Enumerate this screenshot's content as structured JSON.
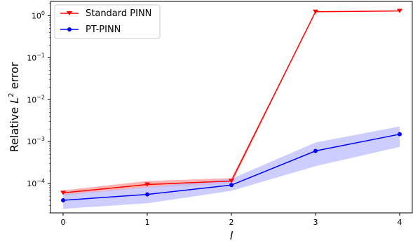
{
  "chart_data": {
    "type": "line",
    "x": [
      0,
      1,
      2,
      3,
      4
    ],
    "xticks": [
      "0",
      "1",
      "2",
      "3",
      "4"
    ],
    "xlabel": "l",
    "ylabel": "Relative L² error",
    "ylabel_main": "Relative ",
    "ylabel_italic": "L",
    "ylabel_sup": "2",
    "ylabel_rest": " error",
    "yscale": "log",
    "ylim": [
      2e-05,
      2.2
    ],
    "yticks": [
      {
        "value": 0.0001,
        "base": "10",
        "exp": "−4"
      },
      {
        "value": 0.001,
        "base": "10",
        "exp": "−3"
      },
      {
        "value": 0.01,
        "base": "10",
        "exp": "−2"
      },
      {
        "value": 0.1,
        "base": "10",
        "exp": "−1"
      },
      {
        "value": 1,
        "base": "10",
        "exp": "0"
      }
    ],
    "legend_position": "top-left",
    "series": [
      {
        "name": "Standard PINN",
        "color": "#ff0000",
        "band_color": "#ff9a9a",
        "marker": "triangle-down",
        "values": [
          6e-05,
          9.5e-05,
          0.000115,
          1.25,
          1.3
        ],
        "lower": [
          5.2e-05,
          8e-05,
          9.8e-05,
          1.25,
          1.3
        ],
        "upper": [
          6.9e-05,
          0.000115,
          0.000135,
          1.25,
          1.3
        ]
      },
      {
        "name": "PT-PINN",
        "color": "#0000ff",
        "band_color": "#bcbcff",
        "marker": "circle",
        "values": [
          4e-05,
          5.5e-05,
          9.2e-05,
          0.0006,
          0.0015
        ],
        "lower": [
          2.5e-05,
          3.4e-05,
          6.7e-05,
          0.00026,
          0.00075
        ],
        "upper": [
          5.6e-05,
          8.2e-05,
          0.00013,
          0.00095,
          0.0023
        ]
      }
    ]
  }
}
